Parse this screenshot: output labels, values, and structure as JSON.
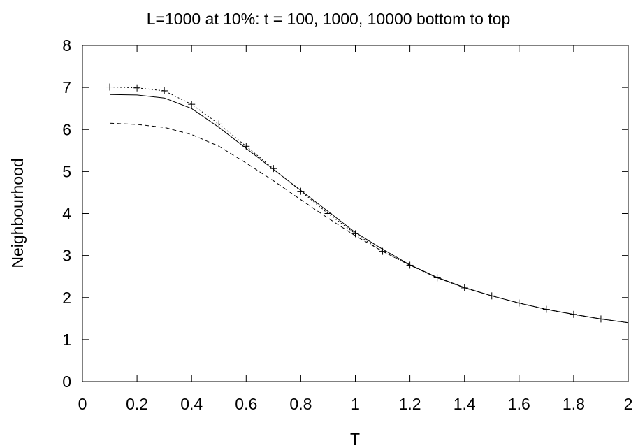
{
  "chart_data": {
    "type": "line",
    "title": "L=1000 at 10%: t = 100, 1000, 10000 bottom to top",
    "xlabel": "T",
    "ylabel": "Neighbourhood",
    "xlim": [
      0,
      2
    ],
    "ylim": [
      0,
      8
    ],
    "xticks": [
      "0",
      "0.2",
      "0.4",
      "0.6",
      "0.8",
      "1",
      "1.2",
      "1.4",
      "1.6",
      "1.8",
      "2"
    ],
    "yticks": [
      "0",
      "1",
      "2",
      "3",
      "4",
      "5",
      "6",
      "7",
      "8"
    ],
    "grid": false,
    "legend": "none",
    "series": [
      {
        "style": "dashed",
        "x": [
          0.1,
          0.2,
          0.3,
          0.4,
          0.5,
          0.6,
          0.7,
          0.8,
          0.9,
          1.0,
          1.1,
          1.2,
          1.3,
          1.4,
          1.5,
          1.6,
          1.7,
          1.8,
          1.9,
          2.0
        ],
        "y": [
          6.15,
          6.12,
          6.05,
          5.88,
          5.6,
          5.2,
          4.78,
          4.33,
          3.89,
          3.47,
          3.1,
          2.77,
          2.47,
          2.23,
          2.04,
          1.87,
          1.72,
          1.6,
          1.49,
          1.4
        ]
      },
      {
        "style": "solid",
        "x": [
          0.1,
          0.2,
          0.3,
          0.4,
          0.5,
          0.6,
          0.7,
          0.8,
          0.9,
          1.0,
          1.1,
          1.2,
          1.3,
          1.4,
          1.5,
          1.6,
          1.7,
          1.8,
          1.9,
          2.0
        ],
        "y": [
          6.83,
          6.82,
          6.75,
          6.5,
          6.05,
          5.55,
          5.05,
          4.55,
          4.05,
          3.55,
          3.15,
          2.78,
          2.48,
          2.24,
          2.04,
          1.87,
          1.72,
          1.6,
          1.49,
          1.4
        ]
      },
      {
        "style": "dotted-with-plus-markers",
        "x": [
          0.1,
          0.2,
          0.3,
          0.4,
          0.5,
          0.6,
          0.7,
          0.8,
          0.9,
          1.0,
          1.1,
          1.2,
          1.3,
          1.4,
          1.5,
          1.6,
          1.7,
          1.8,
          1.9
        ],
        "y": [
          7.01,
          6.99,
          6.92,
          6.6,
          6.13,
          5.6,
          5.07,
          4.53,
          4.0,
          3.52,
          3.1,
          2.77,
          2.47,
          2.23,
          2.04,
          1.87,
          1.72,
          1.6,
          1.49
        ]
      }
    ]
  }
}
